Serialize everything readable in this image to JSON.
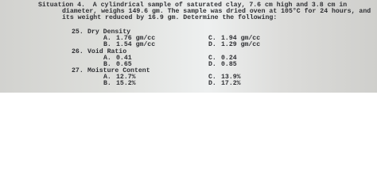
{
  "situation": {
    "lines": [
      "Situation 4.  A cylindrical sample of saturated clay, 7.6 cm high and 3.8 cm in",
      "diameter, weighs 149.6 gm. The sample was dried oven at 105°C for 24 hours, and",
      "its weight reduced by 16.9 gm. Determine the following:"
    ]
  },
  "questions": [
    {
      "number": "25.",
      "title": "Dry Density",
      "choices": [
        {
          "letter": "A.",
          "text": "1.76 gm/cc"
        },
        {
          "letter": "C.",
          "text": "1.94 gm/cc"
        },
        {
          "letter": "B.",
          "text": "1.54 gm/cc"
        },
        {
          "letter": "D.",
          "text": "1.29 gm/cc"
        }
      ]
    },
    {
      "number": "26.",
      "title": "Void Ratio",
      "choices": [
        {
          "letter": "A.",
          "text": "0.41"
        },
        {
          "letter": "C.",
          "text": "0.24"
        },
        {
          "letter": "B.",
          "text": "0.65"
        },
        {
          "letter": "D.",
          "text": "0.85"
        }
      ]
    },
    {
      "number": "27.",
      "title": "Moisture Content",
      "choices": [
        {
          "letter": "A.",
          "text": "12.7%"
        },
        {
          "letter": "C.",
          "text": "13.9%"
        },
        {
          "letter": "B.",
          "text": "15.2%"
        },
        {
          "letter": "D.",
          "text": "17.2%"
        }
      ]
    }
  ]
}
